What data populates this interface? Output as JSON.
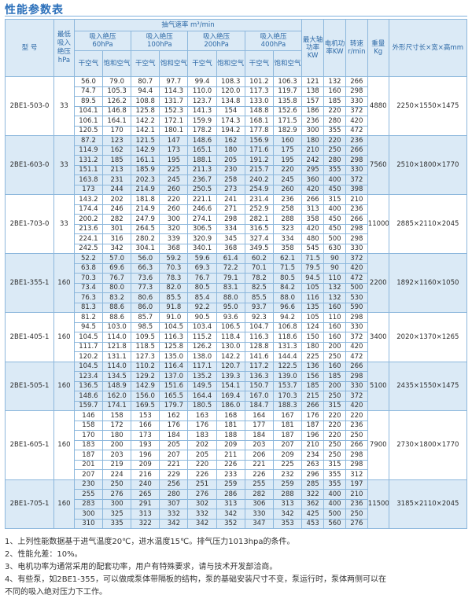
{
  "title": "性能参数表",
  "headers": {
    "model": "型  号",
    "min_suction": "最低吸入绝压hPa",
    "pumping_speed": "抽气速率 m³/min",
    "suction_groups": [
      {
        "label": "吸入绝压",
        "pressure": "60hPa"
      },
      {
        "label": "吸入绝压",
        "pressure": "100hPa"
      },
      {
        "label": "吸入绝压",
        "pressure": "200hPa"
      },
      {
        "label": "吸入绝压",
        "pressure": "400hPa"
      }
    ],
    "dry_air": "干空气",
    "saturated_air": "饱和空气",
    "max_shaft_power": "最大轴功率KW",
    "motor_power": "电机功率KW",
    "speed": "转速r/min",
    "weight": "重量Kg",
    "dimensions": "外形尺寸长×宽×高mm"
  },
  "models": [
    {
      "model": "2BE1-503-0",
      "min_suction": "33",
      "weight": "4880",
      "dimensions": "2250×1550×1475",
      "rows": [
        [
          "56.0",
          "79.0",
          "80.7",
          "97.7",
          "99.4",
          "108.3",
          "101.2",
          "106.3",
          "121",
          "132",
          "266"
        ],
        [
          "74.7",
          "105.3",
          "94.4",
          "114.3",
          "110.0",
          "120.0",
          "117.3",
          "119.7",
          "138",
          "160",
          "298"
        ],
        [
          "89.5",
          "126.2",
          "108.8",
          "131.7",
          "123.7",
          "134.8",
          "133.0",
          "135.8",
          "157",
          "185",
          "330"
        ],
        [
          "104.1",
          "146.8",
          "125.8",
          "152.3",
          "141.3",
          "154",
          "148.8",
          "152.6",
          "186",
          "220",
          "372"
        ],
        [
          "106.1",
          "164.1",
          "142.2",
          "172.1",
          "159.9",
          "174.3",
          "168.1",
          "171.5",
          "236",
          "280",
          "420"
        ],
        [
          "120.5",
          "170",
          "142.1",
          "180.1",
          "178.2",
          "194.2",
          "177.8",
          "182.9",
          "300",
          "355",
          "472"
        ]
      ]
    },
    {
      "model": "2BE1-603-0",
      "min_suction": "33",
      "weight": "7560",
      "dimensions": "2510×1800×1770",
      "rows": [
        [
          "87.2",
          "123",
          "121.5",
          "147",
          "148.6",
          "162",
          "156.9",
          "160",
          "180",
          "220",
          "236"
        ],
        [
          "114.9",
          "162",
          "142.9",
          "173",
          "165.1",
          "180",
          "171.6",
          "175",
          "210",
          "250",
          "266"
        ],
        [
          "131.2",
          "185",
          "161.1",
          "195",
          "188.1",
          "205",
          "191.2",
          "195",
          "242",
          "280",
          "298"
        ],
        [
          "151.1",
          "213",
          "185.9",
          "225",
          "211.3",
          "230",
          "215.7",
          "220",
          "295",
          "355",
          "330"
        ],
        [
          "163.8",
          "231",
          "202.3",
          "245",
          "236.7",
          "258",
          "240.2",
          "245",
          "360",
          "400",
          "372"
        ],
        [
          "173",
          "244",
          "214.9",
          "260",
          "250.5",
          "273",
          "254.9",
          "260",
          "420",
          "450",
          "398"
        ]
      ]
    },
    {
      "model": "2BE1-703-0",
      "min_suction": "33",
      "weight": "11000",
      "dimensions": "2885×2110×2045",
      "rows": [
        [
          "143.2",
          "202",
          "181.8",
          "220",
          "221.1",
          "241",
          "231.4",
          "236",
          "266",
          "315",
          "210"
        ],
        [
          "174.4",
          "246",
          "214.9",
          "260",
          "246.6",
          "271",
          "252.9",
          "258",
          "313",
          "400",
          "236"
        ],
        [
          "200.2",
          "282",
          "247.9",
          "300",
          "274.1",
          "298",
          "282.1",
          "288",
          "358",
          "450",
          "266"
        ],
        [
          "213.6",
          "301",
          "264.5",
          "320",
          "306.5",
          "334",
          "316.5",
          "323",
          "420",
          "450",
          "298"
        ],
        [
          "224.1",
          "316",
          "280.2",
          "339",
          "320.9",
          "345",
          "327.4",
          "334",
          "480",
          "500",
          "298"
        ],
        [
          "242.5",
          "342",
          "304.1",
          "368",
          "340.1",
          "368",
          "349.5",
          "358",
          "545",
          "630",
          "330"
        ]
      ]
    },
    {
      "model": "2BE1-355-1",
      "min_suction": "160",
      "weight": "2200",
      "dimensions": "1892×1160×1050",
      "rows": [
        [
          "52.2",
          "57.0",
          "56.0",
          "59.2",
          "59.6",
          "61.4",
          "60.2",
          "62.1",
          "71.5",
          "90",
          "372"
        ],
        [
          "63.8",
          "69.6",
          "66.3",
          "70.3",
          "69.3",
          "72.2",
          "70.1",
          "71.5",
          "79.5",
          "90",
          "420"
        ],
        [
          "70.3",
          "76.7",
          "73.6",
          "78.3",
          "76.7",
          "79.1",
          "78.2",
          "80.5",
          "94.5",
          "110",
          "472"
        ],
        [
          "73.4",
          "80.0",
          "77.3",
          "82.0",
          "80.5",
          "83.1",
          "82.5",
          "84.2",
          "105",
          "132",
          "500"
        ],
        [
          "76.3",
          "83.2",
          "80.6",
          "85.5",
          "85.4",
          "88.0",
          "85.5",
          "88.0",
          "116",
          "132",
          "530"
        ],
        [
          "81.3",
          "88.6",
          "86.0",
          "91.8",
          "92.2",
          "95.0",
          "93.7",
          "96.6",
          "135",
          "160",
          "590"
        ]
      ]
    },
    {
      "model": "2BE1-405-1",
      "min_suction": "160",
      "weight": "3400",
      "dimensions": "2020×1370×1265",
      "rows": [
        [
          "81.2",
          "88.6",
          "85.7",
          "91.0",
          "90.5",
          "93.6",
          "92.3",
          "94.2",
          "105",
          "110",
          "298"
        ],
        [
          "94.5",
          "103.0",
          "98.5",
          "104.5",
          "103.4",
          "106.5",
          "104.7",
          "106.8",
          "124",
          "160",
          "330"
        ],
        [
          "104.5",
          "114.0",
          "109.5",
          "116.3",
          "115.2",
          "118.4",
          "116.3",
          "118.6",
          "150",
          "160",
          "372"
        ],
        [
          "111.7",
          "121.8",
          "118.5",
          "125.8",
          "126.2",
          "130.0",
          "128.8",
          "131.3",
          "180",
          "200",
          "420"
        ],
        [
          "120.2",
          "131.1",
          "127.3",
          "135.0",
          "138.0",
          "142.2",
          "141.6",
          "144.4",
          "225",
          "250",
          "472"
        ]
      ]
    },
    {
      "model": "2BE1-505-1",
      "min_suction": "160",
      "weight": "5100",
      "dimensions": "2435×1550×1475",
      "rows": [
        [
          "104.5",
          "114.0",
          "110.2",
          "116.4",
          "117.1",
          "120.7",
          "117.2",
          "122.5",
          "136",
          "160",
          "266"
        ],
        [
          "123.4",
          "134.5",
          "129.2",
          "137.0",
          "135.2",
          "139.3",
          "136.3",
          "139.0",
          "156",
          "185",
          "298"
        ],
        [
          "136.5",
          "148.9",
          "142.9",
          "151.6",
          "149.5",
          "154.1",
          "150.7",
          "153.7",
          "185",
          "200",
          "330"
        ],
        [
          "148.6",
          "162.0",
          "156.0",
          "165.5",
          "164.4",
          "169.4",
          "167.0",
          "170.3",
          "215",
          "250",
          "372"
        ],
        [
          "159.7",
          "174.1",
          "169.5",
          "179.7",
          "180.5",
          "186.0",
          "184.7",
          "188.3",
          "266",
          "315",
          "420"
        ]
      ]
    },
    {
      "model": "2BE1-605-1",
      "min_suction": "160",
      "weight": "7900",
      "dimensions": "2730×1800×1770",
      "rows": [
        [
          "146",
          "158",
          "153",
          "162",
          "163",
          "168",
          "164",
          "167",
          "176",
          "220",
          "220"
        ],
        [
          "158",
          "172",
          "166",
          "176",
          "176",
          "181",
          "177",
          "181",
          "187",
          "220",
          "236"
        ],
        [
          "170",
          "180",
          "173",
          "184",
          "183",
          "188",
          "184",
          "187",
          "196",
          "220",
          "250"
        ],
        [
          "183",
          "200",
          "193",
          "205",
          "202",
          "209",
          "203",
          "207",
          "210",
          "250",
          "266"
        ],
        [
          "187",
          "203",
          "196",
          "207",
          "205",
          "211",
          "206",
          "209",
          "234",
          "250",
          "298"
        ],
        [
          "201",
          "219",
          "209",
          "221",
          "220",
          "226",
          "221",
          "225",
          "263",
          "315",
          "298"
        ],
        [
          "207",
          "224",
          "216",
          "229",
          "226",
          "233",
          "226",
          "232",
          "296",
          "355",
          "312"
        ]
      ]
    },
    {
      "model": "2BE1-705-1",
      "min_suction": "160",
      "weight": "11500",
      "dimensions": "3185×2110×2045",
      "rows": [
        [
          "230",
          "250",
          "240",
          "256",
          "251",
          "259",
          "255",
          "259",
          "285",
          "355",
          "197"
        ],
        [
          "255",
          "276",
          "265",
          "280",
          "276",
          "286",
          "282",
          "288",
          "322",
          "400",
          "210"
        ],
        [
          "283",
          "300",
          "291",
          "307",
          "302",
          "313",
          "306",
          "313",
          "362",
          "400",
          "236"
        ],
        [
          "300",
          "325",
          "313",
          "332",
          "332",
          "342",
          "330",
          "342",
          "425",
          "500",
          "250"
        ],
        [
          "310",
          "335",
          "322",
          "342",
          "342",
          "352",
          "347",
          "353",
          "453",
          "560",
          "276"
        ]
      ]
    }
  ],
  "notes": [
    "1、上列性能数据基于进气温度20℃，进水温度15℃。排气压力1013hpa的条件。",
    "2、性能允差：10%。",
    "3、电机功率为通常采用的配套功率，用户有特殊要求，请与技术开发部洽商。",
    "4、有些泵，如2BE1-355，可以做成泵体带隔板的结构，泵的基础安装尺寸不变，泵运行时，泵体两侧可以在",
    "不同的吸入绝对压力下工作。"
  ]
}
